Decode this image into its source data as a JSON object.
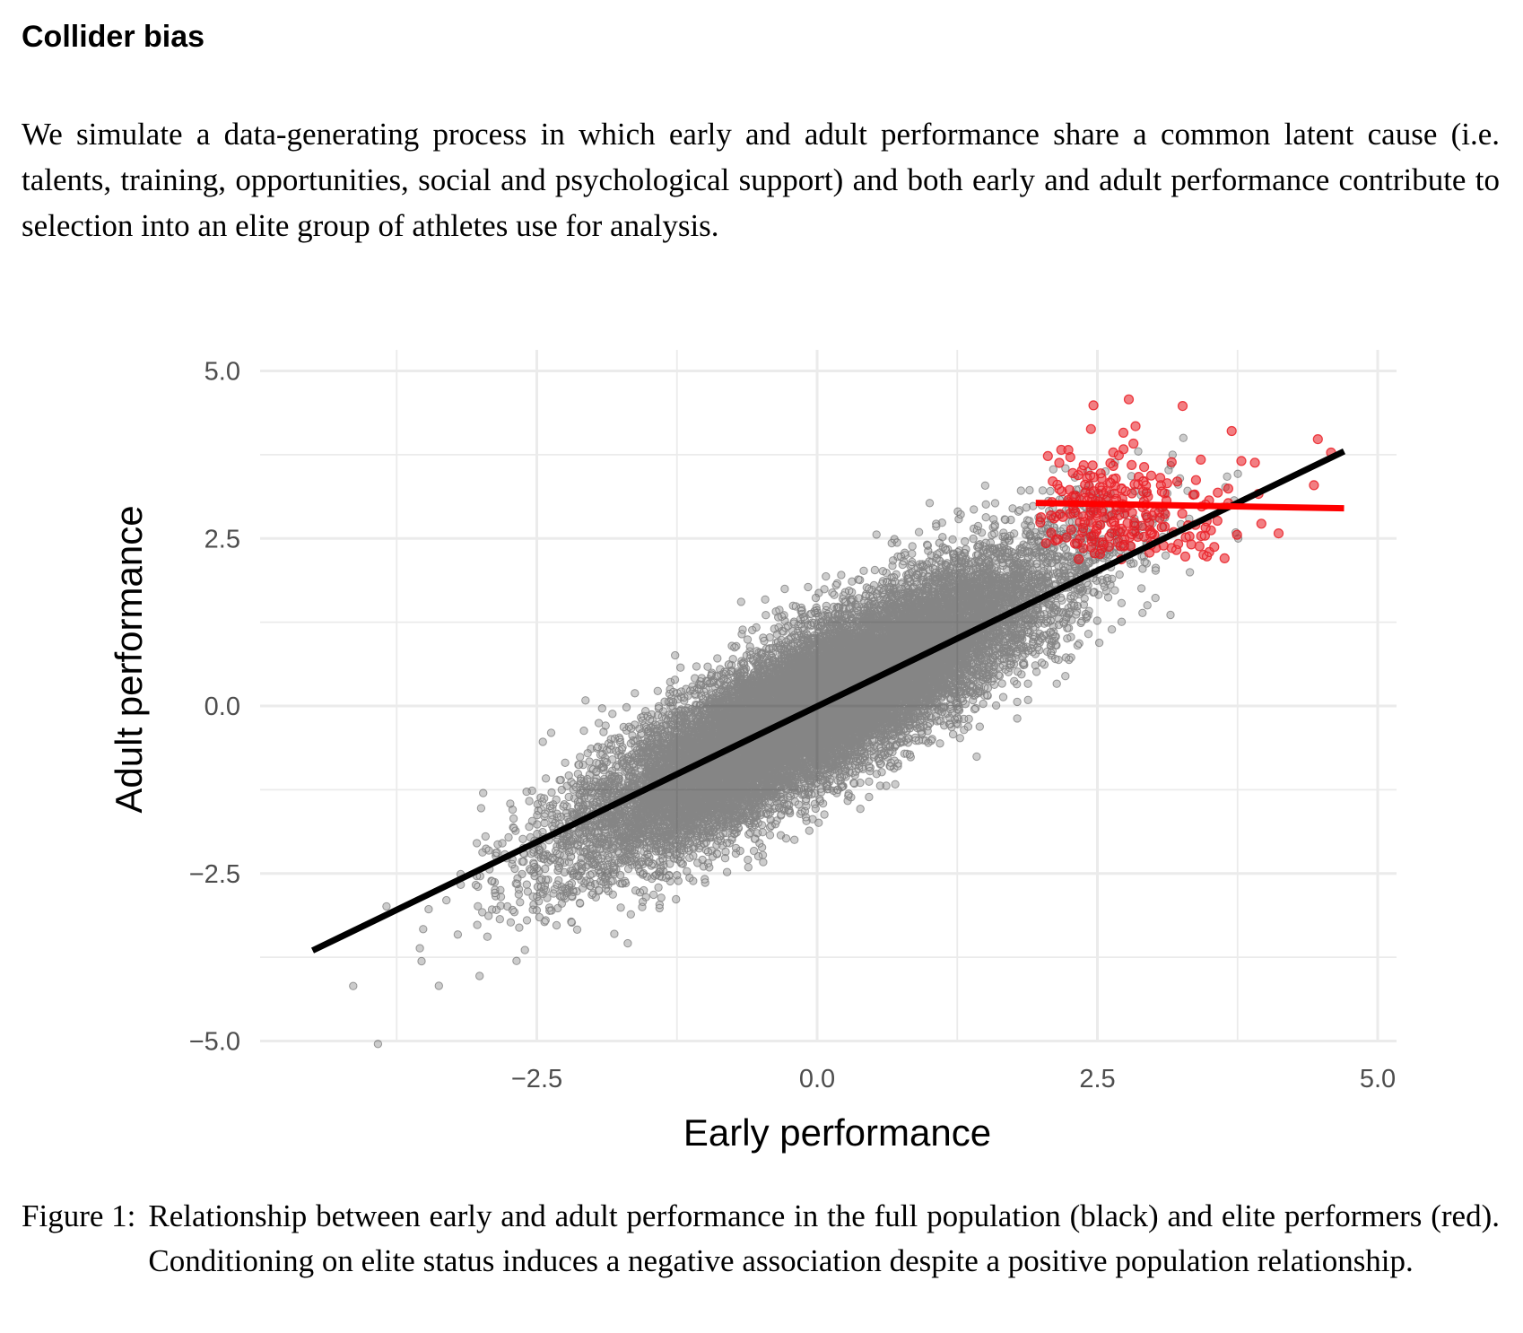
{
  "section": {
    "heading": "Collider bias",
    "intro": "We simulate a data-generating process in which early and adult performance share a common latent cause (i.e. talents, training, opportunities, social and psychological support) and both early and adult performance contribute to selection into an elite group of athletes use for analysis."
  },
  "figure": {
    "caption_label": "Figure 1:",
    "caption_text": "Relationship between early and adult performance in the full population (black) and elite performers (red). Conditioning on elite status induces a negative association despite a positive population relationship."
  },
  "chart_data": {
    "type": "scatter",
    "xlabel": "Early performance",
    "ylabel": "Adult performance",
    "xlim": [
      -4.6,
      5.4
    ],
    "ylim": [
      -5.3,
      5.3
    ],
    "x_ticks": [
      -2.5,
      0.0,
      2.5,
      5.0
    ],
    "x_tick_labels": [
      "−2.5",
      "0.0",
      "2.5",
      "5.0"
    ],
    "y_ticks": [
      -5.0,
      -2.5,
      0.0,
      2.5,
      5.0
    ],
    "y_tick_labels": [
      "−5.0",
      "−2.5",
      "0.0",
      "2.5",
      "5.0"
    ],
    "grid": true,
    "legend": "none",
    "series": [
      {
        "group": "full population",
        "color": "#000000",
        "point_opacity": 0.2,
        "approx_n": 20000,
        "x_mean": 0.0,
        "x_sd": 1.0,
        "y_mean": 0.0,
        "y_sd": 1.05,
        "correlation": 0.85
      },
      {
        "group": "elite performers",
        "color": "#e8141b",
        "point_opacity": 0.55,
        "approx_n": 260,
        "x_range": [
          1.9,
          4.7
        ],
        "y_range": [
          1.9,
          4.8
        ]
      }
    ],
    "fit_lines": [
      {
        "group": "full population",
        "color": "#000000",
        "x": [
          -4.5,
          4.7
        ],
        "y": [
          -3.65,
          3.8
        ]
      },
      {
        "group": "elite performers",
        "color": "#ff0000",
        "x": [
          1.95,
          4.7
        ],
        "y": [
          3.03,
          2.95
        ]
      }
    ]
  }
}
